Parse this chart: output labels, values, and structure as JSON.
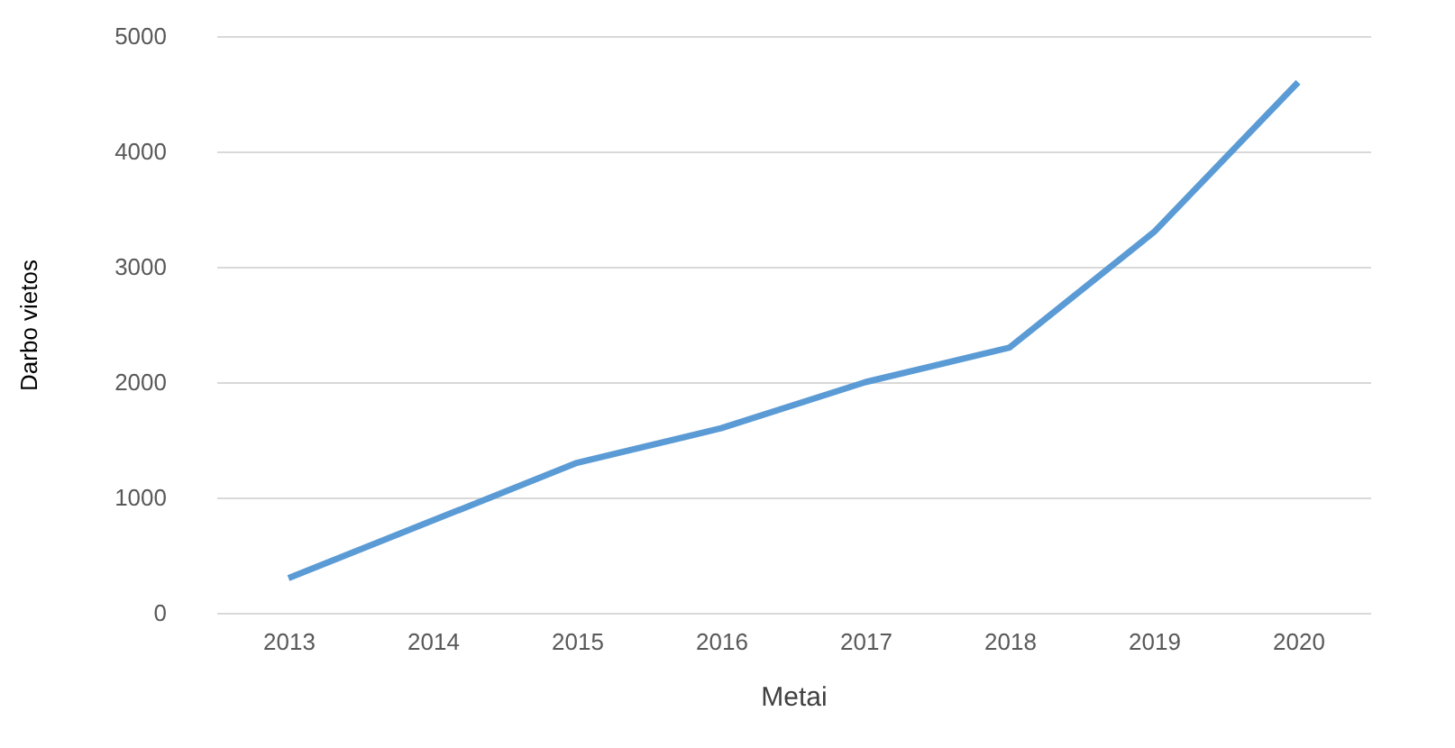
{
  "chart_data": {
    "type": "line",
    "xlabel": "Metai",
    "ylabel": "Darbo vietos",
    "categories": [
      "2013",
      "2014",
      "2015",
      "2016",
      "2017",
      "2018",
      "2019",
      "2020"
    ],
    "series": [
      {
        "color": "#5b9bd5",
        "values": [
          300,
          800,
          1300,
          1600,
          2000,
          2300,
          3300,
          4600
        ]
      }
    ],
    "ylim": [
      0,
      5000
    ],
    "yticks": [
      0,
      1000,
      2000,
      3000,
      4000,
      5000
    ],
    "grid": "y",
    "marker": "none",
    "line_style": "solid"
  }
}
